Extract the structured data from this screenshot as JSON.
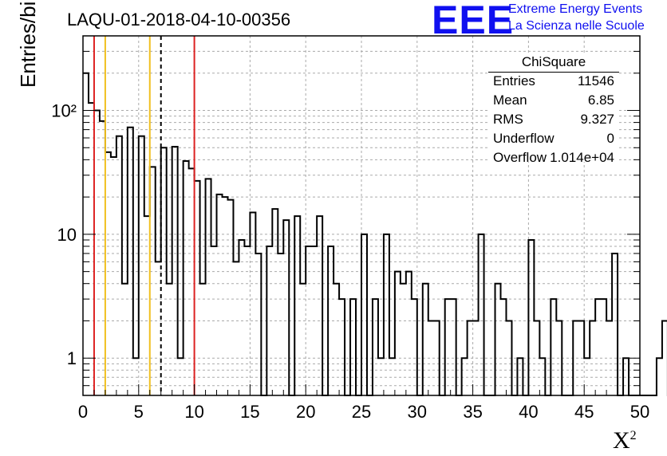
{
  "header": {
    "title": "LAQU-01-2018-04-10-00356",
    "logo_mark": "EEE",
    "logo_line1": "Extreme Energy Events",
    "logo_line2": "La Scienza nelle Scuole"
  },
  "stats_box": {
    "title": "ChiSquare",
    "rows": [
      {
        "key": "Entries",
        "value": "11546"
      },
      {
        "key": "Mean",
        "value": "6.85"
      },
      {
        "key": "RMS",
        "value": "9.327"
      },
      {
        "key": "Underflow",
        "value": "0"
      },
      {
        "key": "Overflow",
        "value": "1.014e+04"
      }
    ]
  },
  "colors": {
    "red_line": "#dd2222",
    "yellow_line": "#f0c020",
    "dashed_line": "#000000",
    "histogram": "#000000",
    "grid": "#aaaaaa",
    "logo": "#1010f0"
  },
  "chart_data": {
    "type": "bar",
    "histogram_style": "step",
    "xlabel": "X²",
    "ylabel": "Entries/bin",
    "xlim": [
      0,
      50
    ],
    "ylim": [
      0.5,
      400
    ],
    "yscale": "log",
    "grid": true,
    "bin_width": 0.5,
    "x_ticks": [
      "0",
      "5",
      "10",
      "15",
      "20",
      "25",
      "30",
      "35",
      "40",
      "45",
      "50"
    ],
    "y_ticks": [
      {
        "value": 1,
        "label": "1"
      },
      {
        "value": 10,
        "label": "10"
      },
      {
        "value": 100,
        "label": "10²"
      }
    ],
    "bin_counts": [
      200,
      115,
      100,
      82,
      46,
      42,
      62,
      4,
      73,
      1,
      62,
      14,
      35,
      6,
      50,
      4,
      51,
      1,
      39,
      34,
      27,
      4,
      28,
      8,
      21,
      20,
      19,
      6,
      9,
      8,
      15,
      7,
      0.5,
      8,
      16,
      7,
      13,
      0.5,
      14,
      4,
      8,
      8,
      14,
      0.5,
      8,
      4,
      3,
      0.5,
      3,
      0.5,
      10,
      0.5,
      3,
      1,
      10,
      1,
      5,
      4,
      5,
      3,
      0.5,
      4,
      2,
      2,
      0.5,
      3,
      3,
      0.5,
      1,
      2,
      2,
      10,
      0.5,
      0.5,
      4,
      3,
      2,
      0.5,
      1,
      0.5,
      9,
      2,
      1,
      0.5,
      3,
      2,
      0.5,
      0.5,
      2,
      2,
      1,
      2,
      3,
      3,
      2,
      7,
      0.5,
      1,
      0.5,
      0.5,
      0.5,
      0.5,
      0.5,
      1,
      2,
      0.5
    ],
    "vertical_lines": [
      {
        "x": 1,
        "style": "red"
      },
      {
        "x": 2,
        "style": "yellow"
      },
      {
        "x": 6,
        "style": "yellow"
      },
      {
        "x": 7,
        "style": "dashed"
      },
      {
        "x": 10,
        "style": "red"
      }
    ]
  }
}
